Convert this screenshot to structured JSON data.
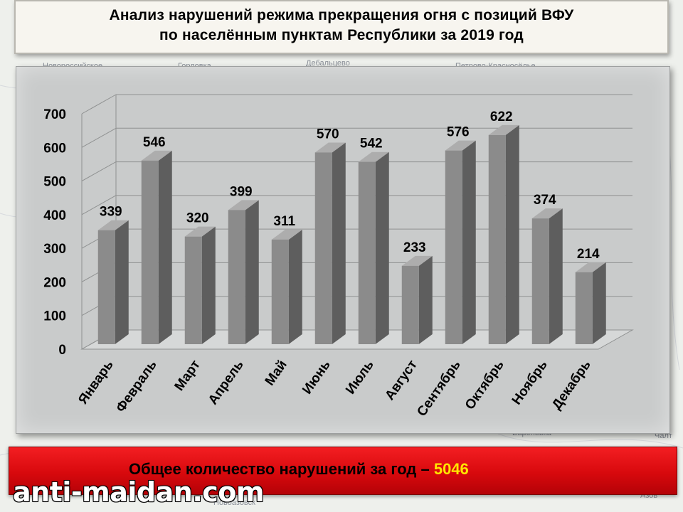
{
  "title": {
    "line1": "Анализ нарушений режима прекращения огня с позиций ВФУ",
    "line2": "по населённым пунктам Республики за 2019 год"
  },
  "banner": {
    "text": "Общее количество нарушений за год – ",
    "value": "5046"
  },
  "watermark": "anti-maidan.com",
  "map_labels": [
    "Новороссийское",
    "Горловка",
    "Дебальцево",
    "Петрово-Красносёлье",
    "Николаевка",
    "Вареновка",
    "Новоазовск",
    "Азов",
    "Чалт"
  ],
  "colors": {
    "bar_front": "#8b8b8b",
    "bar_side": "#5e5e5e",
    "bar_top": "#adadad",
    "banner_red": "#e3080c",
    "total_value": "#ffe600",
    "panel": "#c9cbcb"
  },
  "chart_data": {
    "type": "bar",
    "title": "",
    "xlabel": "",
    "ylabel": "",
    "ylim": [
      0,
      700
    ],
    "yticks": [
      0,
      100,
      200,
      300,
      400,
      500,
      600,
      700
    ],
    "grid": true,
    "categories": [
      "Январь",
      "Февраль",
      "Март",
      "Апрель",
      "Май",
      "Июнь",
      "Июль",
      "Август",
      "Сентябрь",
      "Октябрь",
      "Ноябрь",
      "Декабрь"
    ],
    "values": [
      339,
      546,
      320,
      399,
      311,
      570,
      542,
      233,
      576,
      622,
      374,
      214
    ],
    "data_labels": [
      "339",
      "546",
      "320",
      "399",
      "311",
      "570",
      "542",
      "233",
      "576",
      "622",
      "374",
      "214"
    ]
  }
}
